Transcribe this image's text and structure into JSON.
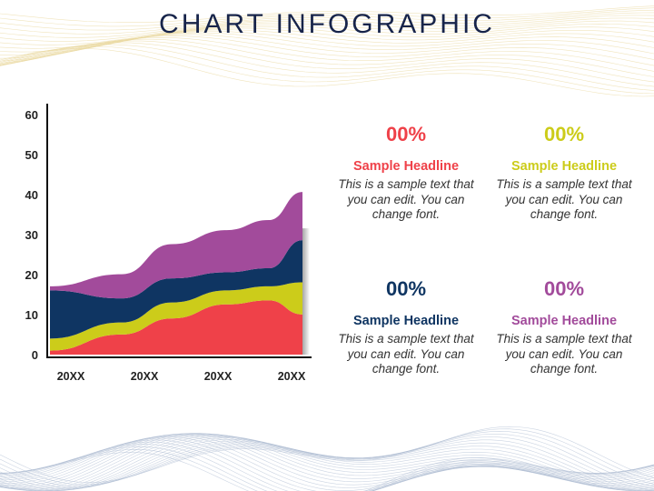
{
  "title": "CHART INFOGRAPHIC",
  "colors": {
    "title": "#17244a",
    "red": "#ef4149",
    "yellow": "#cccc1a",
    "navy": "#0f3562",
    "purple": "#a24b9b"
  },
  "chart_data": {
    "type": "area",
    "stacked": true,
    "title": "",
    "xlabel": "",
    "ylabel": "",
    "x": [
      0,
      0.85,
      1.45,
      2.1,
      2.6,
      3.0
    ],
    "categories": [
      "20XX",
      "20XX",
      "20XX",
      "20XX"
    ],
    "yticks": [
      "0",
      "10",
      "20",
      "30",
      "40",
      "50",
      "60"
    ],
    "ylim": [
      0,
      60
    ],
    "series": [
      {
        "color": "#ef4149",
        "values": [
          1,
          5,
          9,
          12.5,
          13.5,
          10
        ]
      },
      {
        "color": "#cccc1a",
        "values": [
          3,
          3,
          4,
          3.5,
          3.5,
          8
        ]
      },
      {
        "color": "#0f3562",
        "values": [
          12,
          6,
          6,
          4.5,
          4.5,
          10.5
        ]
      },
      {
        "color": "#a24b9b",
        "values": [
          1,
          6,
          8.5,
          10.5,
          12,
          12
        ]
      }
    ],
    "grid": false,
    "legend": "none"
  },
  "cards": [
    {
      "percent": "00%",
      "headline": "Sample Headline",
      "body": "This is a sample text that you can edit. You can change font.",
      "color": "#ef4149"
    },
    {
      "percent": "00%",
      "headline": "Sample Headline",
      "body": "This is a sample text that you can edit. You can change font.",
      "color": "#cccc1a"
    },
    {
      "percent": "00%",
      "headline": "Sample Headline",
      "body": "This is a sample text that you can edit. You can change font.",
      "color": "#0f3562"
    },
    {
      "percent": "00%",
      "headline": "Sample Headline",
      "body": "This is a sample text that you can edit. You can change font.",
      "color": "#a24b9b"
    }
  ]
}
